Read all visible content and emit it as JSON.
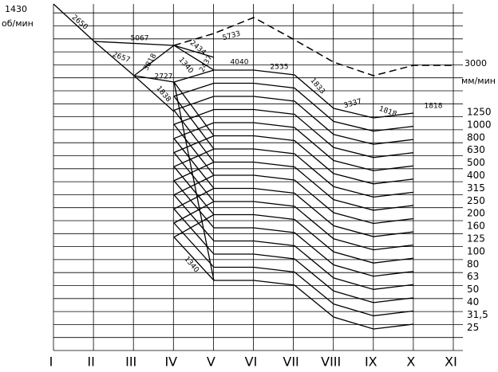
{
  "input": {
    "speed": "1430",
    "unit": "об/мин"
  },
  "rapid": {
    "speed": "3000",
    "unit": "мм/мин"
  },
  "feeds": [
    "1250",
    "1000",
    "800",
    "630",
    "500",
    "400",
    "315",
    "250",
    "200",
    "160",
    "125",
    "100",
    "80",
    "63",
    "50",
    "40",
    "31,5",
    "25"
  ],
  "shafts": [
    "I",
    "II",
    "III",
    "IV",
    "V",
    "VI",
    "VII",
    "VIII",
    "IX",
    "X",
    "XI"
  ],
  "ratios": [
    "2650",
    "5067",
    "2657",
    "3818",
    "2727",
    "1838",
    "2434",
    "1340",
    "2437",
    "5733",
    "4040",
    "2535",
    "1833",
    "3337",
    "1818",
    "1818",
    "1340"
  ]
}
